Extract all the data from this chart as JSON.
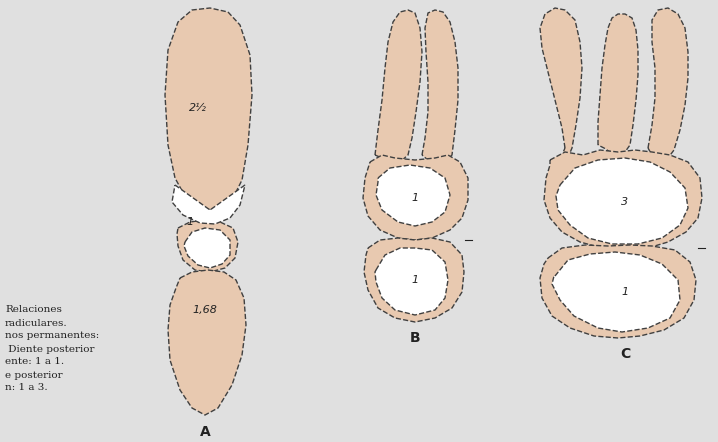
{
  "bg_color": "#e0e0e0",
  "tooth_fill": "#e8c9b0",
  "tooth_fill2": "#dbb89a",
  "tooth_edge": "#404040",
  "white_fill": "#ffffff",
  "text_color": "#222222",
  "labels": {
    "A_label": "A",
    "B_label": "B",
    "C_label": "C",
    "ratio_21_2": "2½",
    "ratio_1a": "1",
    "ratio_1b": "1",
    "ratio_168": "1,68",
    "ratio_crown_B": "1",
    "ratio_root_B": "1",
    "ratio_crown_C": "3",
    "ratio_root_C": "1"
  },
  "side_text": [
    "Relaciones",
    "radiculares.",
    "nos permanentes:",
    " Diente posterior",
    "ente: 1 a 1.",
    "e posterior",
    "n: 1 a 3."
  ],
  "font_size_labels": 10,
  "font_size_ratios": 8,
  "font_size_side": 7.5,
  "figsize": [
    7.18,
    4.42
  ],
  "dpi": 100
}
